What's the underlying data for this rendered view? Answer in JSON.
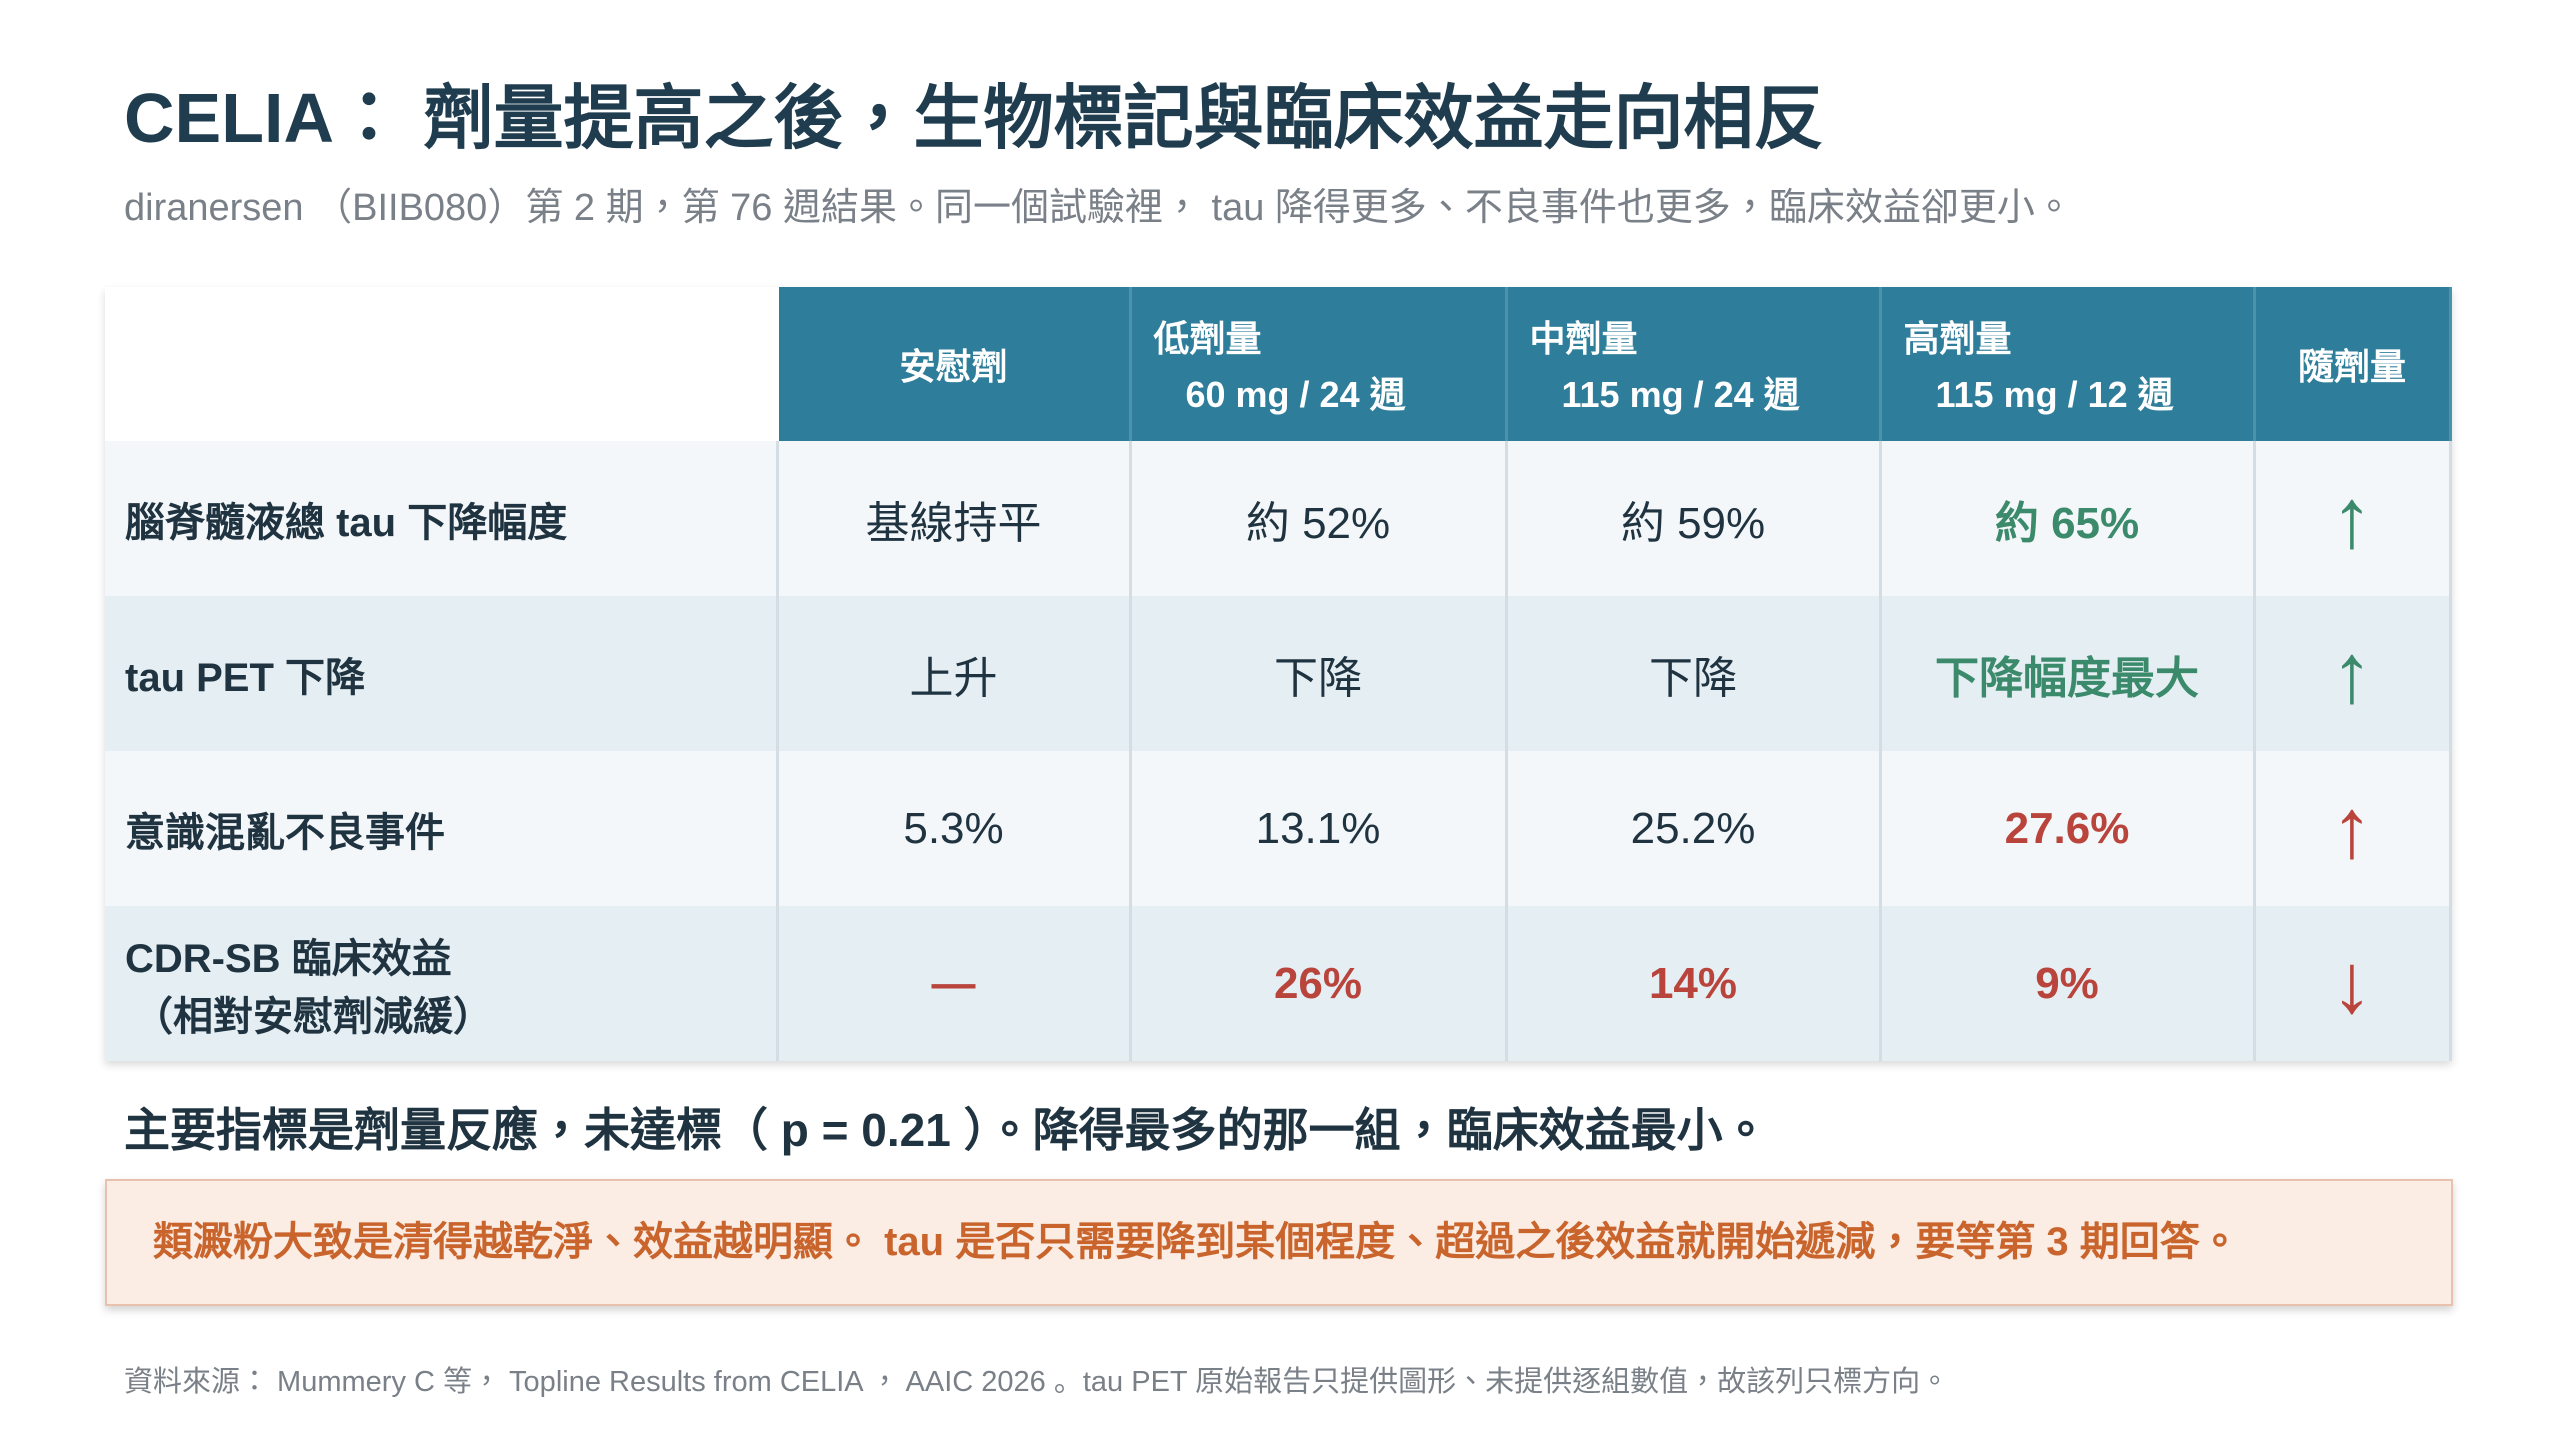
{
  "header": {
    "title": "CELIA： 劑量提高之後，生物標記與臨床效益走向相反",
    "subtitle": "diranersen （BIIB080）第 2 期，第 76 週結果。同一個試驗裡， tau 降得更多、不良事件也更多，臨床效益卻更小。"
  },
  "table": {
    "columns": [
      {
        "name": "安慰劑"
      },
      {
        "name": "低劑量",
        "detail": "60 mg / 24 週"
      },
      {
        "name": "中劑量",
        "detail": "115 mg / 24 週"
      },
      {
        "name": "高劑量",
        "detail": "115 mg / 12 週"
      },
      {
        "name": "隨劑量"
      }
    ],
    "rows": [
      {
        "label": "腦脊髓液總 tau 下降幅度",
        "cells": [
          "基線持平",
          "約 52%",
          "約 59%",
          "約 65%"
        ],
        "trend": "↑"
      },
      {
        "label": "tau PET 下降",
        "cells": [
          "上升",
          "下降",
          "下降",
          "下降幅度最大"
        ],
        "trend": "↑"
      },
      {
        "label": "意識混亂不良事件",
        "cells": [
          "5.3%",
          "13.1%",
          "25.2%",
          "27.6%"
        ],
        "trend": "↑"
      },
      {
        "label": "CDR-SB 臨床效益",
        "sublabel": "（相對安慰劑減緩）",
        "cells": [
          "—",
          "26%",
          "14%",
          "9%"
        ],
        "trend": "↓"
      }
    ]
  },
  "summary": "主要指標是劑量反應，未達標（ p = 0.21 ）。降得最多的那一組，臨床效益最小。",
  "callout": "類澱粉大致是清得越乾淨、效益越明顯。 tau 是否只需要降到某個程度、超過之後效益就開始遞減，要等第 3 期回答。",
  "source": "資料來源： Mummery C 等， Topline Results from CELIA ， AAIC 2026 。tau PET 原始報告只提供圖形、未提供逐組數值，故該列只標方向。"
}
